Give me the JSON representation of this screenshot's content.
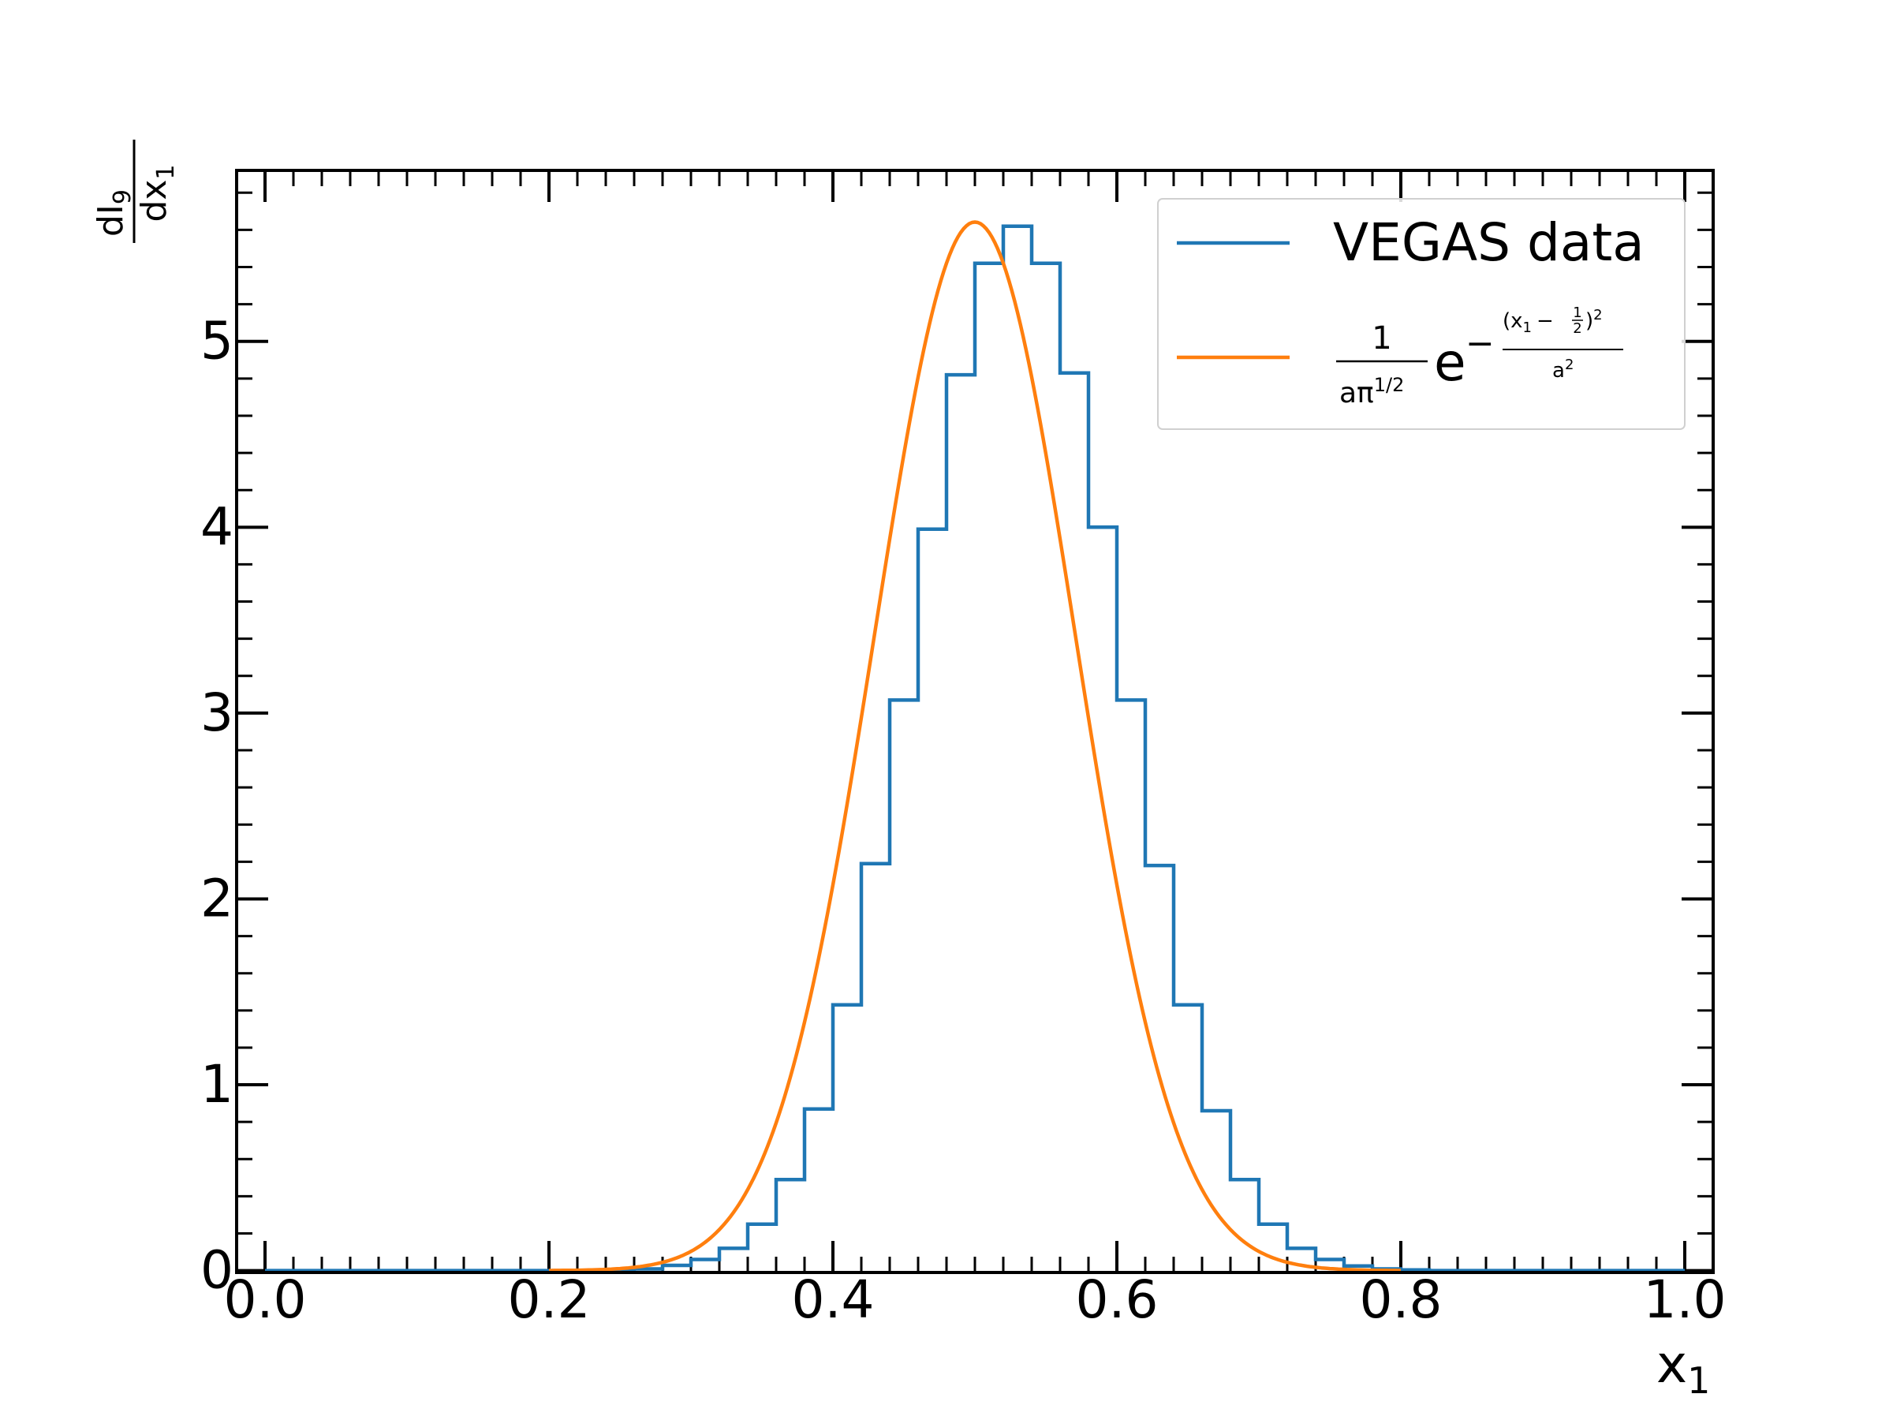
{
  "chart_data": {
    "type": "line",
    "title": "",
    "xlabel": "x",
    "xlabel_sub": "1",
    "ylabel_num": "dI",
    "ylabel_num_sub": "9",
    "ylabel_den": "dx",
    "ylabel_den_sub": "1",
    "xlim": [
      -0.02,
      1.02
    ],
    "ylim": [
      -0.01,
      5.92
    ],
    "xticks": [
      "0.0",
      "0.2",
      "0.4",
      "0.6",
      "0.8",
      "1.0"
    ],
    "yticks": [
      "0",
      "1",
      "2",
      "3",
      "4",
      "5"
    ],
    "grid": false,
    "legend_position": "top-right",
    "histogram": {
      "name": "VEGAS data",
      "color": "#1f77b4",
      "bin_width": 0.02,
      "bin_edges_start": 0.0,
      "values": [
        0,
        0,
        0,
        0,
        0,
        0,
        0,
        0,
        0,
        0,
        0,
        0,
        0.004,
        0.009,
        0.028,
        0.06,
        0.12,
        0.25,
        0.49,
        0.87,
        1.43,
        2.19,
        3.07,
        3.99,
        4.82,
        5.42,
        5.62,
        5.42,
        4.83,
        4.0,
        3.07,
        2.18,
        1.43,
        0.86,
        0.49,
        0.25,
        0.12,
        0.06,
        0.025,
        0.009,
        0.004,
        0,
        0,
        0,
        0,
        0,
        0,
        0,
        0,
        0
      ]
    },
    "fit": {
      "label_numerator": "1",
      "label_denominator_base": "aπ",
      "label_denominator_exp": "1/2",
      "label_e": "e",
      "label_minus": "−",
      "label_exp_num_open": "(x",
      "label_exp_num_sub": "1",
      "label_exp_num_mid": "−",
      "label_half_num": "1",
      "label_half_den": "2",
      "label_exp_num_close": ")",
      "label_exp_num_pow": "2",
      "label_exp_den": "a",
      "label_exp_den_pow": "2",
      "color": "#ff7f0e",
      "mean": 0.5,
      "a": 0.1,
      "x_range": [
        0.2,
        0.8
      ]
    }
  }
}
